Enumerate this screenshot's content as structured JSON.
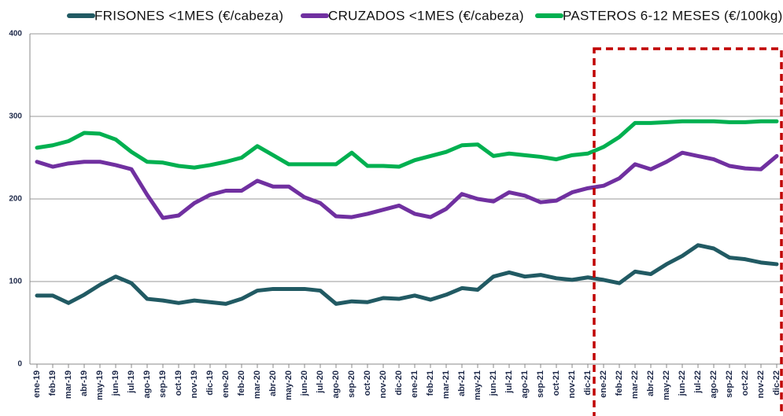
{
  "chart_data": {
    "type": "line",
    "categories": [
      "ene-19",
      "feb-19",
      "mar-19",
      "abr-19",
      "may-19",
      "jun-19",
      "jul-19",
      "ago-19",
      "sep-19",
      "oct-19",
      "nov-19",
      "dic-19",
      "ene-20",
      "feb-20",
      "mar-20",
      "abr-20",
      "may-20",
      "jun-20",
      "jul-20",
      "ago-20",
      "sep-20",
      "oct-20",
      "nov-20",
      "dic-20",
      "ene-21",
      "feb-21",
      "mar-21",
      "abr-21",
      "may-21",
      "jun-21",
      "jul-21",
      "ago-21",
      "sep-21",
      "oct-21",
      "nov-21",
      "dic-21",
      "ene-22",
      "feb-22",
      "mar-22",
      "abr-22",
      "may-22",
      "jun-22",
      "jul-22",
      "ago-22",
      "sep-22",
      "oct-22",
      "nov-22",
      "dic-22"
    ],
    "series": [
      {
        "name": "FRISONES <1MES (€/cabeza)",
        "color": "#215a63",
        "values": [
          83,
          83,
          74,
          84,
          96,
          106,
          98,
          79,
          77,
          74,
          77,
          75,
          73,
          79,
          89,
          91,
          91,
          91,
          89,
          73,
          76,
          75,
          80,
          79,
          83,
          78,
          84,
          92,
          90,
          106,
          111,
          106,
          108,
          104,
          102,
          105,
          102,
          98,
          112,
          109,
          121,
          131,
          144,
          140,
          129,
          127,
          123,
          121
        ]
      },
      {
        "name": "CRUZADOS <1MES (€/cabeza)",
        "color": "#7030a0",
        "values": [
          245,
          239,
          243,
          245,
          245,
          241,
          236,
          205,
          177,
          180,
          195,
          205,
          210,
          210,
          222,
          215,
          215,
          202,
          195,
          179,
          178,
          182,
          187,
          192,
          182,
          178,
          188,
          206,
          200,
          197,
          208,
          204,
          196,
          198,
          208,
          213,
          216,
          225,
          242,
          236,
          245,
          256,
          252,
          248,
          240,
          237,
          236,
          252
        ]
      },
      {
        "name": "PASTEROS 6-12 MESES (€/100kg)",
        "color": "#00b050",
        "values": [
          262,
          265,
          270,
          280,
          279,
          272,
          257,
          245,
          244,
          240,
          238,
          241,
          245,
          250,
          264,
          253,
          242,
          242,
          242,
          242,
          256,
          240,
          240,
          239,
          247,
          252,
          257,
          265,
          266,
          252,
          255,
          253,
          251,
          248,
          253,
          255,
          263,
          275,
          292,
          292,
          293,
          294,
          294,
          294,
          293,
          293,
          294,
          294
        ]
      }
    ],
    "ylim": [
      0,
      400
    ],
    "yticks": [
      0,
      100,
      200,
      300,
      400
    ],
    "grid": true
  }
}
